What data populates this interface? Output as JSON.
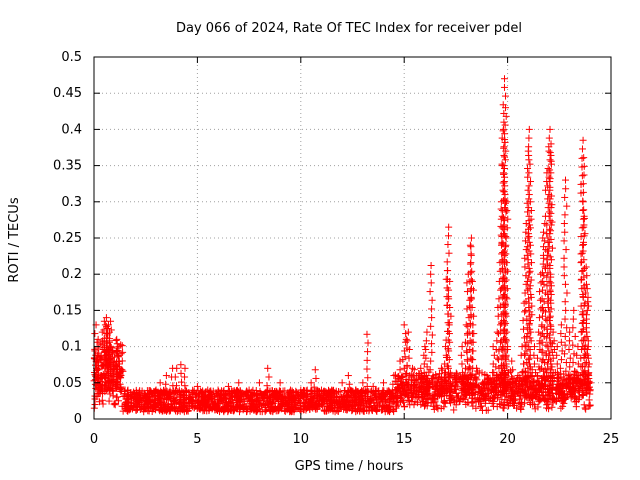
{
  "chart_data": {
    "type": "scatter",
    "title": "Day 066 of 2024, Rate Of TEC Index for receiver pdel",
    "xlabel": "GPS time / hours",
    "ylabel": "ROTI / TECUs",
    "xlim": [
      0,
      25
    ],
    "ylim": [
      0,
      0.5
    ],
    "xticks": [
      0,
      5,
      10,
      15,
      20,
      25
    ],
    "yticks": [
      0,
      0.05,
      0.1,
      0.15,
      0.2,
      0.25,
      0.3,
      0.35,
      0.4,
      0.45,
      0.5
    ],
    "xtick_labels": [
      "0",
      "5",
      "10",
      "15",
      "20",
      "25"
    ],
    "ytick_labels": [
      "0",
      "0.05",
      "0.1",
      "0.15",
      "0.2",
      "0.25",
      "0.3",
      "0.35",
      "0.4",
      "0.45",
      "0.5"
    ],
    "grid": true,
    "marker": "+",
    "color": "#ff0000",
    "series": [
      {
        "name": "ROTI",
        "points": [
          [
            0.05,
            0.02
          ],
          [
            0.1,
            0.13
          ],
          [
            0.15,
            0.08
          ],
          [
            0.2,
            0.11
          ],
          [
            0.3,
            0.06
          ],
          [
            0.4,
            0.12
          ],
          [
            0.5,
            0.135
          ],
          [
            0.55,
            0.13
          ],
          [
            0.6,
            0.14
          ],
          [
            0.65,
            0.125
          ],
          [
            0.7,
            0.13
          ],
          [
            0.75,
            0.12
          ],
          [
            0.8,
            0.135
          ],
          [
            0.9,
            0.09
          ],
          [
            1.0,
            0.07
          ],
          [
            1.1,
            0.11
          ],
          [
            1.2,
            0.1
          ],
          [
            1.3,
            0.06
          ],
          [
            1.5,
            0.04
          ],
          [
            2.0,
            0.03
          ],
          [
            2.5,
            0.03
          ],
          [
            3.0,
            0.04
          ],
          [
            3.2,
            0.05
          ],
          [
            3.5,
            0.06
          ],
          [
            3.8,
            0.07
          ],
          [
            4.0,
            0.07
          ],
          [
            4.2,
            0.075
          ],
          [
            4.4,
            0.07
          ],
          [
            5.0,
            0.045
          ],
          [
            5.5,
            0.04
          ],
          [
            6.0,
            0.04
          ],
          [
            6.5,
            0.045
          ],
          [
            7.0,
            0.05
          ],
          [
            7.5,
            0.04
          ],
          [
            8.0,
            0.05
          ],
          [
            8.4,
            0.07
          ],
          [
            9.0,
            0.05
          ],
          [
            9.5,
            0.04
          ],
          [
            10.0,
            0.04
          ],
          [
            10.5,
            0.05
          ],
          [
            10.7,
            0.068
          ],
          [
            11.0,
            0.04
          ],
          [
            11.5,
            0.04
          ],
          [
            12.0,
            0.05
          ],
          [
            12.3,
            0.06
          ],
          [
            13.0,
            0.05
          ],
          [
            13.2,
            0.117
          ],
          [
            13.5,
            0.045
          ],
          [
            14.0,
            0.05
          ],
          [
            14.5,
            0.06
          ],
          [
            14.8,
            0.08
          ],
          [
            15.0,
            0.13
          ],
          [
            15.1,
            0.11
          ],
          [
            15.2,
            0.12
          ],
          [
            15.4,
            0.07
          ],
          [
            15.6,
            0.06
          ],
          [
            15.8,
            0.07
          ],
          [
            16.0,
            0.1
          ],
          [
            16.1,
            0.12
          ],
          [
            16.3,
            0.212
          ],
          [
            16.5,
            0.05
          ],
          [
            16.8,
            0.07
          ],
          [
            17.0,
            0.1
          ],
          [
            17.1,
            0.205
          ],
          [
            17.15,
            0.265
          ],
          [
            17.2,
            0.19
          ],
          [
            17.5,
            0.05
          ],
          [
            17.8,
            0.1
          ],
          [
            18.0,
            0.13
          ],
          [
            18.1,
            0.2
          ],
          [
            18.2,
            0.24
          ],
          [
            18.25,
            0.25
          ],
          [
            18.3,
            0.19
          ],
          [
            18.5,
            0.07
          ],
          [
            18.8,
            0.05
          ],
          [
            19.0,
            0.06
          ],
          [
            19.3,
            0.1
          ],
          [
            19.5,
            0.12
          ],
          [
            19.6,
            0.19
          ],
          [
            19.7,
            0.3
          ],
          [
            19.75,
            0.35
          ],
          [
            19.8,
            0.4
          ],
          [
            19.85,
            0.47
          ],
          [
            19.9,
            0.43
          ],
          [
            19.95,
            0.3
          ],
          [
            20.0,
            0.1
          ],
          [
            20.2,
            0.08
          ],
          [
            20.5,
            0.06
          ],
          [
            20.7,
            0.1
          ],
          [
            20.8,
            0.16
          ],
          [
            20.9,
            0.27
          ],
          [
            21.0,
            0.37
          ],
          [
            21.05,
            0.4
          ],
          [
            21.1,
            0.3
          ],
          [
            21.3,
            0.1
          ],
          [
            21.5,
            0.12
          ],
          [
            21.6,
            0.2
          ],
          [
            21.7,
            0.25
          ],
          [
            21.8,
            0.27
          ],
          [
            21.9,
            0.34
          ],
          [
            22.0,
            0.37
          ],
          [
            22.05,
            0.4
          ],
          [
            22.1,
            0.38
          ],
          [
            22.2,
            0.12
          ],
          [
            22.4,
            0.1
          ],
          [
            22.6,
            0.13
          ],
          [
            22.8,
            0.33
          ],
          [
            23.0,
            0.12
          ],
          [
            23.2,
            0.15
          ],
          [
            23.4,
            0.1
          ],
          [
            23.6,
            0.36
          ],
          [
            23.65,
            0.385
          ],
          [
            23.7,
            0.28
          ],
          [
            23.8,
            0.21
          ],
          [
            23.85,
            0.18
          ],
          [
            23.9,
            0.1
          ],
          [
            24.0,
            0.05
          ]
        ]
      }
    ]
  }
}
